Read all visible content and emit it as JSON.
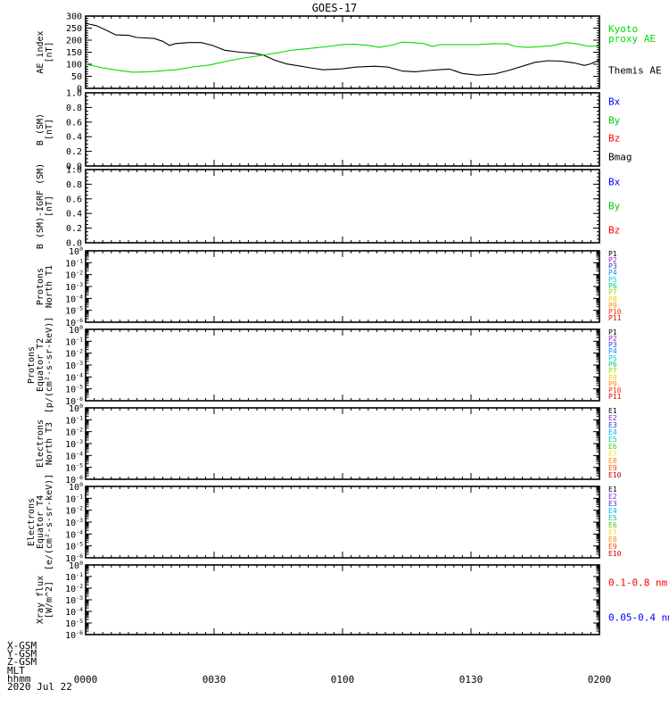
{
  "title": "GOES-17",
  "x_axis": {
    "range_minutes": [
      0,
      120
    ],
    "tick_labels": [
      "0000",
      "0030",
      "0100",
      "0130",
      "0200"
    ],
    "tick_minutes": [
      0,
      30,
      60,
      90,
      120
    ],
    "row_labels": [
      "X-GSM",
      "Y-GSM",
      "Z-GSM",
      "MLT",
      "hhmm"
    ],
    "date_label": "2020 Jul 22"
  },
  "chart_data": [
    {
      "id": "ae-index",
      "type": "line",
      "ylabel_lines": [
        "AE index",
        "[nT]"
      ],
      "scale": "linear",
      "ylim": [
        0,
        300
      ],
      "ytick_step": 50,
      "yminor_step": 10,
      "ytick_labels": [
        "0",
        "50",
        "100",
        "150",
        "200",
        "250",
        "300"
      ],
      "legend": [
        {
          "lines": [
            "Kyoto",
            "proxy AE"
          ],
          "color": "#00dd00"
        },
        {
          "lines": [
            "Themis AE"
          ],
          "color": "#000000"
        }
      ],
      "series": [
        {
          "name": "Themis AE",
          "color": "#000000",
          "x": [
            0,
            2.5,
            5,
            7,
            10,
            12,
            16,
            18,
            19.6,
            21,
            24,
            27,
            29.6,
            32.5,
            36,
            39,
            41.5,
            44,
            47,
            50,
            52.5,
            55.5,
            60,
            63,
            67.5,
            70.6,
            74,
            77,
            80,
            83,
            85,
            88,
            91.5,
            95.6,
            98.7,
            102,
            105,
            108,
            111,
            114,
            116.5,
            118,
            120
          ],
          "y": [
            270,
            260,
            240,
            222,
            220,
            211,
            207,
            195,
            178,
            186,
            190,
            190,
            178,
            158,
            150,
            146,
            138,
            118,
            101,
            93,
            85,
            77,
            81,
            88,
            92,
            88,
            72,
            69,
            74,
            78,
            80,
            62,
            55,
            60,
            74,
            92,
            108,
            115,
            113,
            106,
            95,
            102,
            118
          ]
        },
        {
          "name": "Kyoto proxy AE",
          "color": "#00dd00",
          "x": [
            0,
            4,
            7.5,
            11,
            14.4,
            18,
            21,
            25,
            29,
            33,
            37,
            41.5,
            45.6,
            48,
            52.5,
            56.7,
            60,
            63,
            66.5,
            68.5,
            71.7,
            74,
            75.8,
            79,
            81,
            83,
            87,
            91.5,
            95.6,
            98.7,
            100.4,
            103,
            106,
            109,
            112.3,
            115,
            117.5,
            120
          ],
          "y": [
            100,
            85,
            75,
            67,
            69,
            73,
            77,
            89,
            97,
            113,
            126,
            138,
            150,
            158,
            166,
            174,
            182,
            183,
            177,
            170,
            180,
            192,
            190,
            186,
            174,
            182,
            182,
            182,
            186,
            184,
            174,
            170,
            173,
            177,
            190,
            184,
            174,
            177
          ]
        }
      ]
    },
    {
      "id": "b-sm",
      "type": "line",
      "ylabel_lines": [
        "B (SM)",
        "[nT]"
      ],
      "scale": "linear",
      "ylim": [
        0.0,
        1.0
      ],
      "ytick_step": 0.2,
      "yminor_step": 0.05,
      "ytick_labels": [
        "0.0",
        "0.2",
        "0.4",
        "0.6",
        "0.8",
        "1.0"
      ],
      "legend": [
        {
          "lines": [
            "Bx"
          ],
          "color": "#0000ff"
        },
        {
          "lines": [
            "By"
          ],
          "color": "#00cc00"
        },
        {
          "lines": [
            "Bz"
          ],
          "color": "#ff0000"
        },
        {
          "lines": [
            "Bmag"
          ],
          "color": "#000000"
        }
      ],
      "series": []
    },
    {
      "id": "b-sm-igrf",
      "type": "line",
      "ylabel_lines": [
        "B (SM)-IGRF (SM)",
        "[nT]"
      ],
      "scale": "linear",
      "ylim": [
        0.0,
        1.0
      ],
      "ytick_step": 0.2,
      "yminor_step": 0.05,
      "ytick_labels": [
        "0.0",
        "0.2",
        "0.4",
        "0.6",
        "0.8",
        "1.0"
      ],
      "legend": [
        {
          "lines": [
            "Bx"
          ],
          "color": "#0000ff"
        },
        {
          "lines": [
            "By"
          ],
          "color": "#00cc00"
        },
        {
          "lines": [
            "Bz"
          ],
          "color": "#ff0000"
        }
      ],
      "series": []
    },
    {
      "id": "protons-north-t1",
      "type": "line",
      "ylabel_lines": [
        "Protons",
        "North T1"
      ],
      "scale": "log",
      "ylim_exp": [
        0,
        -6
      ],
      "legend": [
        {
          "lines": [
            "P1"
          ],
          "color": "#000000"
        },
        {
          "lines": [
            "P2"
          ],
          "color": "#8b22cc"
        },
        {
          "lines": [
            "P3"
          ],
          "color": "#3333cc"
        },
        {
          "lines": [
            "P4"
          ],
          "color": "#0088ff"
        },
        {
          "lines": [
            "P5"
          ],
          "color": "#00ccee"
        },
        {
          "lines": [
            "P6"
          ],
          "color": "#00cc66"
        },
        {
          "lines": [
            "P7"
          ],
          "color": "#88dd00"
        },
        {
          "lines": [
            "P8"
          ],
          "color": "#ffcc00"
        },
        {
          "lines": [
            "P9"
          ],
          "color": "#ff8800"
        },
        {
          "lines": [
            "P10"
          ],
          "color": "#ff2a00"
        },
        {
          "lines": [
            "P11"
          ],
          "color": "#dd0000"
        }
      ],
      "series": []
    },
    {
      "id": "protons-equator-t2",
      "type": "line",
      "ylabel_lines": [
        "Protons",
        "Equator T2",
        "[p/(cm²-s-sr-keV)]"
      ],
      "scale": "log",
      "ylim_exp": [
        0,
        -6
      ],
      "legend": [
        {
          "lines": [
            "P1"
          ],
          "color": "#000000"
        },
        {
          "lines": [
            "P2"
          ],
          "color": "#8b22cc"
        },
        {
          "lines": [
            "P3"
          ],
          "color": "#3333cc"
        },
        {
          "lines": [
            "P4"
          ],
          "color": "#0088ff"
        },
        {
          "lines": [
            "P5"
          ],
          "color": "#00ccee"
        },
        {
          "lines": [
            "P6"
          ],
          "color": "#00cc66"
        },
        {
          "lines": [
            "P7"
          ],
          "color": "#88dd00"
        },
        {
          "lines": [
            "P8"
          ],
          "color": "#ffcc00"
        },
        {
          "lines": [
            "P9"
          ],
          "color": "#ff8800"
        },
        {
          "lines": [
            "P10"
          ],
          "color": "#ff2a00"
        },
        {
          "lines": [
            "P11"
          ],
          "color": "#dd0000"
        }
      ],
      "series": []
    },
    {
      "id": "electrons-north-t3",
      "type": "line",
      "ylabel_lines": [
        "Electrons",
        "North T3"
      ],
      "scale": "log",
      "ylim_exp": [
        0,
        -6
      ],
      "legend": [
        {
          "lines": [
            "E1"
          ],
          "color": "#000000"
        },
        {
          "lines": [
            "E2"
          ],
          "color": "#8b22cc"
        },
        {
          "lines": [
            "E3"
          ],
          "color": "#3333cc"
        },
        {
          "lines": [
            "E4"
          ],
          "color": "#00aaff"
        },
        {
          "lines": [
            "E5"
          ],
          "color": "#00cc99"
        },
        {
          "lines": [
            "E6"
          ],
          "color": "#44cc00"
        },
        {
          "lines": [
            "E7"
          ],
          "color": "#ffdd00"
        },
        {
          "lines": [
            "E8"
          ],
          "color": "#ff8800"
        },
        {
          "lines": [
            "E9"
          ],
          "color": "#ff4400"
        },
        {
          "lines": [
            "E10"
          ],
          "color": "#cc0000"
        }
      ],
      "series": []
    },
    {
      "id": "electrons-equator-t4",
      "type": "line",
      "ylabel_lines": [
        "Electrons",
        "Equator T4",
        "[e/(cm²-s-sr-keV)]"
      ],
      "scale": "log",
      "ylim_exp": [
        0,
        -6
      ],
      "legend": [
        {
          "lines": [
            "E1"
          ],
          "color": "#000000"
        },
        {
          "lines": [
            "E2"
          ],
          "color": "#8b22cc"
        },
        {
          "lines": [
            "E3"
          ],
          "color": "#3333cc"
        },
        {
          "lines": [
            "E4"
          ],
          "color": "#00aaff"
        },
        {
          "lines": [
            "E5"
          ],
          "color": "#00cc99"
        },
        {
          "lines": [
            "E6"
          ],
          "color": "#44cc00"
        },
        {
          "lines": [
            "E7"
          ],
          "color": "#ffdd00"
        },
        {
          "lines": [
            "E8"
          ],
          "color": "#ff8800"
        },
        {
          "lines": [
            "E9"
          ],
          "color": "#ff4400"
        },
        {
          "lines": [
            "E10"
          ],
          "color": "#cc0000"
        }
      ],
      "series": []
    },
    {
      "id": "xray-flux",
      "type": "line",
      "ylabel_lines": [
        "Xray flux",
        "[W/m^2]"
      ],
      "scale": "log",
      "ylim_exp": [
        0,
        -6
      ],
      "legend": [
        {
          "lines": [
            "0.1-0.8 nm"
          ],
          "color": "#ff0000"
        },
        {
          "lines": [
            "0.05-0.4 nm"
          ],
          "color": "#0000ff"
        }
      ],
      "series": []
    }
  ]
}
